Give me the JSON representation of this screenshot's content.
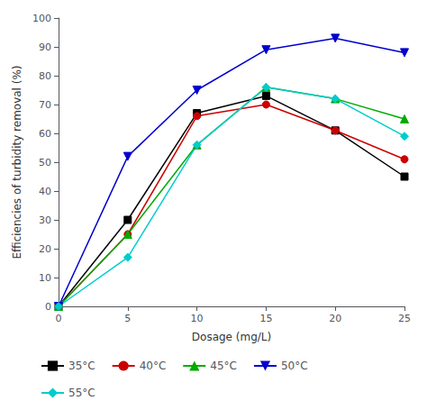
{
  "chart_data": {
    "type": "line",
    "x": [
      0,
      5,
      10,
      15,
      20,
      25
    ],
    "series": [
      {
        "name": "35°C",
        "color": "#000000",
        "marker": "square",
        "values": [
          0,
          30,
          67,
          73,
          61,
          45
        ]
      },
      {
        "name": "40°C",
        "color": "#cc0000",
        "marker": "circle",
        "values": [
          0,
          25,
          66,
          70,
          61,
          51
        ]
      },
      {
        "name": "45°C",
        "color": "#00aa00",
        "marker": "triangle",
        "values": [
          0,
          25,
          56,
          76,
          72,
          65
        ]
      },
      {
        "name": "50°C",
        "color": "#0000cc",
        "marker": "triangle_down",
        "values": [
          0,
          52,
          75,
          89,
          93,
          88
        ]
      },
      {
        "name": "55°C",
        "color": "#00cccc",
        "marker": "diamond",
        "values": [
          0,
          17,
          56,
          76,
          72,
          59
        ]
      }
    ],
    "xlabel": "Dosage (mg/L)",
    "ylabel": "Efficiencies of turbidity removal (%)",
    "xlim": [
      0,
      25
    ],
    "xticks": [
      0,
      5,
      10,
      15,
      20,
      25
    ],
    "ylim": [
      0,
      100
    ],
    "yticks": [
      0,
      10,
      20,
      30,
      40,
      50,
      60,
      70,
      80,
      90,
      100
    ],
    "grid": false,
    "legend": "lower left"
  }
}
